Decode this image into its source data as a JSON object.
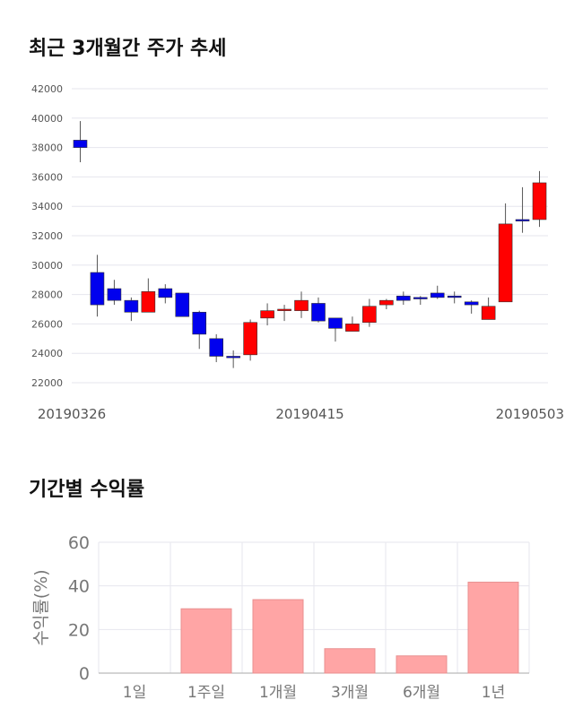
{
  "titles": {
    "candle": "최근 3개월간 주가 추세",
    "returns": "기간별 수익률"
  },
  "colors": {
    "up": "#ff0000",
    "down": "#0000ee",
    "bar": "#ffa5a5",
    "grid": "#e6e6ee"
  },
  "chart_data": [
    {
      "type": "candlestick",
      "title": "최근 3개월간 주가 추세",
      "ylim": [
        22000,
        42000
      ],
      "yticks": [
        22000,
        24000,
        26000,
        28000,
        30000,
        32000,
        34000,
        36000,
        38000,
        40000,
        42000
      ],
      "xtick_labels": [
        "20190326",
        "20190415",
        "20190503"
      ],
      "candles": [
        {
          "o": 38500,
          "c": 38000,
          "h": 39800,
          "l": 37000
        },
        {
          "o": 29500,
          "c": 27300,
          "h": 30700,
          "l": 26500
        },
        {
          "o": 28400,
          "c": 27600,
          "h": 29000,
          "l": 27300
        },
        {
          "o": 27600,
          "c": 26800,
          "h": 27800,
          "l": 26200
        },
        {
          "o": 26800,
          "c": 28200,
          "h": 29100,
          "l": 26800
        },
        {
          "o": 28400,
          "c": 27800,
          "h": 28700,
          "l": 27400
        },
        {
          "o": 28100,
          "c": 26500,
          "h": 28100,
          "l": 26500
        },
        {
          "o": 26800,
          "c": 25300,
          "h": 26900,
          "l": 24300
        },
        {
          "o": 25000,
          "c": 23800,
          "h": 25300,
          "l": 23400
        },
        {
          "o": 23800,
          "c": 23700,
          "h": 24200,
          "l": 23000
        },
        {
          "o": 23900,
          "c": 26100,
          "h": 26300,
          "l": 23500
        },
        {
          "o": 26400,
          "c": 26900,
          "h": 27400,
          "l": 25900
        },
        {
          "o": 26900,
          "c": 27000,
          "h": 27300,
          "l": 26200
        },
        {
          "o": 26900,
          "c": 27600,
          "h": 28200,
          "l": 26400
        },
        {
          "o": 27400,
          "c": 26200,
          "h": 27800,
          "l": 26100
        },
        {
          "o": 26400,
          "c": 25700,
          "h": 26400,
          "l": 24800
        },
        {
          "o": 25500,
          "c": 26000,
          "h": 26500,
          "l": 25500
        },
        {
          "o": 26100,
          "c": 27200,
          "h": 27700,
          "l": 25800
        },
        {
          "o": 27300,
          "c": 27600,
          "h": 27700,
          "l": 27000
        },
        {
          "o": 27900,
          "c": 27600,
          "h": 28200,
          "l": 27300
        },
        {
          "o": 27800,
          "c": 27700,
          "h": 27900,
          "l": 27300
        },
        {
          "o": 28100,
          "c": 27800,
          "h": 28600,
          "l": 27700
        },
        {
          "o": 27900,
          "c": 27800,
          "h": 28200,
          "l": 27400
        },
        {
          "o": 27500,
          "c": 27300,
          "h": 27600,
          "l": 26700
        },
        {
          "o": 26300,
          "c": 27200,
          "h": 27800,
          "l": 26300
        },
        {
          "o": 27500,
          "c": 32800,
          "h": 34200,
          "l": 27500
        },
        {
          "o": 33100,
          "c": 33000,
          "h": 35300,
          "l": 32200
        },
        {
          "o": 33100,
          "c": 35600,
          "h": 36400,
          "l": 32600
        }
      ]
    },
    {
      "type": "bar",
      "title": "기간별 수익률",
      "ylabel": "수익률(%)",
      "ylim": [
        0,
        60
      ],
      "yticks": [
        0,
        20,
        40,
        60
      ],
      "categories": [
        "1일",
        "1주일",
        "1개월",
        "3개월",
        "6개월",
        "1년"
      ],
      "values": [
        0,
        29.5,
        33.7,
        11.2,
        7.9,
        41.7
      ]
    }
  ]
}
